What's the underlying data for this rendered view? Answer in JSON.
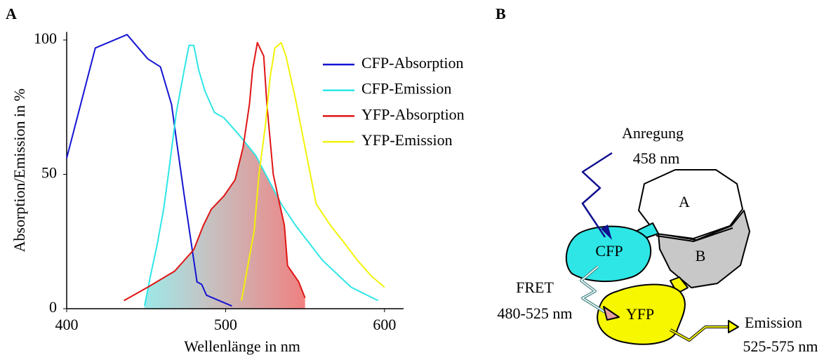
{
  "chart_data": {
    "type": "line",
    "xlabel": "Wellenlänge in nm",
    "ylabel": "Absorption/Emission in %",
    "xlim": [
      400,
      612
    ],
    "ylim": [
      0,
      103
    ],
    "xticks": [
      400,
      500,
      600
    ],
    "yticks": [
      0,
      50,
      100
    ],
    "legend": "upper right",
    "series": [
      {
        "name": "CFP-Absorption",
        "color": "#1414d2",
        "x": [
          400,
          418,
          438,
          451,
          459,
          466,
          469,
          474,
          478,
          482,
          485,
          488,
          504
        ],
        "values": [
          56,
          97,
          102,
          93,
          90,
          76,
          63,
          42,
          26,
          10,
          9,
          5,
          1
        ]
      },
      {
        "name": "CFP-Emission",
        "color": "#2ee6e6",
        "x": [
          449,
          453,
          457,
          461,
          464,
          469,
          474,
          477,
          480,
          483,
          487,
          493,
          499,
          508,
          519,
          535,
          544,
          561,
          579,
          596
        ],
        "values": [
          1,
          13,
          24,
          37,
          50,
          73,
          89,
          98,
          98,
          89,
          81,
          73,
          71,
          65,
          57,
          39,
          31,
          18,
          8,
          3
        ]
      },
      {
        "name": "YFP-Absorption",
        "color": "#e01414",
        "x": [
          436,
          451,
          468,
          480,
          486,
          491,
          499,
          506,
          511,
          515,
          517,
          520,
          524,
          526,
          530,
          534,
          537,
          539,
          546,
          550
        ],
        "values": [
          3,
          8,
          14,
          22,
          31,
          37,
          42,
          48,
          60,
          76,
          89,
          99,
          94,
          76,
          50,
          39,
          31,
          16,
          10,
          4
        ]
      },
      {
        "name": "YFP-Emission",
        "color": "#f2f20a",
        "x": [
          510,
          514,
          518,
          521,
          525,
          528,
          531,
          535,
          538,
          544,
          550,
          557,
          566,
          574,
          583,
          592,
          600
        ],
        "values": [
          3,
          16,
          29,
          50,
          68,
          86,
          97,
          99,
          94,
          78,
          60,
          39,
          31,
          25,
          18,
          12,
          8
        ]
      }
    ]
  },
  "panels": {
    "a": "A",
    "b": "B"
  },
  "diagram": {
    "excitation": "Anregung",
    "excitation_wavelength": "458 nm",
    "domain_a": "A",
    "domain_b": "B",
    "donor": "CFP",
    "acceptor": "YFP",
    "fret": "FRET",
    "fret_range": "480-525 nm",
    "emission": "Emission",
    "emission_range": "525-575 nm"
  }
}
